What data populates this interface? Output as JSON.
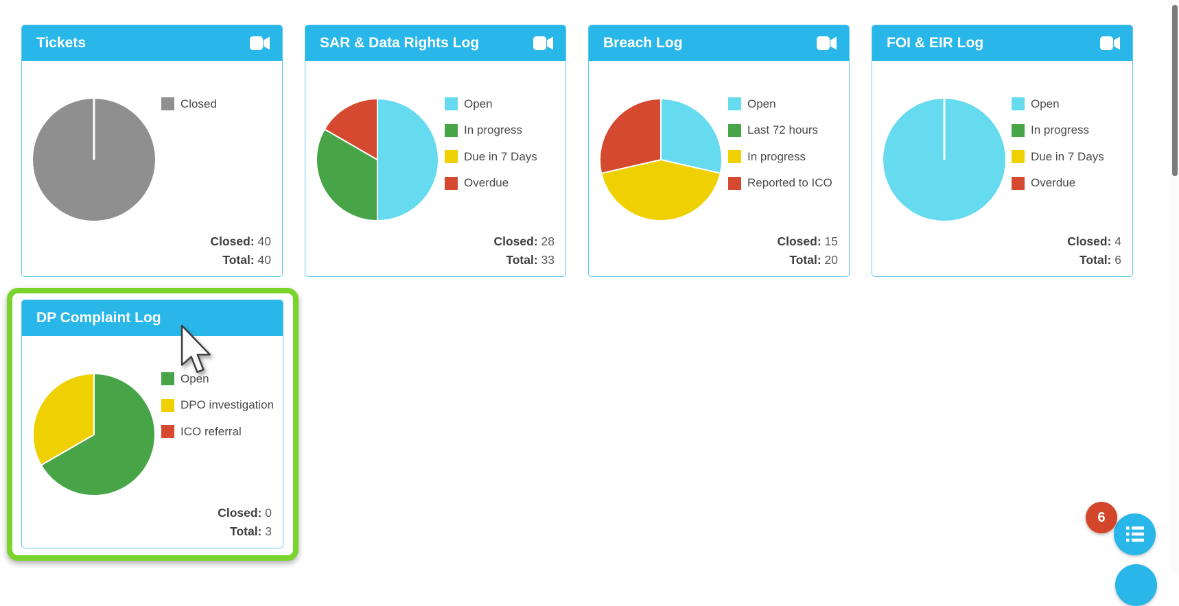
{
  "colors": {
    "header_blue": "#29B6E9",
    "cyan": "#66DBF0",
    "green": "#47A447",
    "yellow": "#EFD002",
    "red": "#D4492F",
    "gray": "#8F8F8F",
    "highlight_green": "#7BD42B",
    "badge_red": "#D3462B",
    "fab_blue": "#29B6E9",
    "card_border": "#5BC8EE",
    "scrollbar_thumb": "#7B7B7B"
  },
  "cards": [
    {
      "title": "Tickets",
      "camera_icon": true,
      "highlighted": false,
      "slices": [
        {
          "label": "Closed",
          "color": "gray",
          "value": 40
        }
      ],
      "summary": {
        "closed_label": "Closed:",
        "closed_value": "40",
        "total_label": "Total:",
        "total_value": "40"
      }
    },
    {
      "title": "SAR & Data Rights Log",
      "camera_icon": true,
      "highlighted": false,
      "slices": [
        {
          "label": "Open",
          "color": "cyan",
          "value": 3
        },
        {
          "label": "In progress",
          "color": "green",
          "value": 2
        },
        {
          "label": "Due in 7 Days",
          "color": "yellow",
          "value": 0
        },
        {
          "label": "Overdue",
          "color": "red",
          "value": 1
        }
      ],
      "summary": {
        "closed_label": "Closed:",
        "closed_value": "28",
        "total_label": "Total:",
        "total_value": "33"
      }
    },
    {
      "title": "Breach Log",
      "camera_icon": true,
      "highlighted": false,
      "slices": [
        {
          "label": "Open",
          "color": "cyan",
          "value": 2
        },
        {
          "label": "Last 72 hours",
          "color": "green",
          "value": 0
        },
        {
          "label": "In progress",
          "color": "yellow",
          "value": 3
        },
        {
          "label": "Reported to ICO",
          "color": "red",
          "value": 2
        }
      ],
      "summary": {
        "closed_label": "Closed:",
        "closed_value": "15",
        "total_label": "Total:",
        "total_value": "20"
      }
    },
    {
      "title": "FOI & EIR Log",
      "camera_icon": true,
      "highlighted": false,
      "slices": [
        {
          "label": "Open",
          "color": "cyan",
          "value": 2
        },
        {
          "label": "In progress",
          "color": "green",
          "value": 0
        },
        {
          "label": "Due in 7 Days",
          "color": "yellow",
          "value": 0
        },
        {
          "label": "Overdue",
          "color": "red",
          "value": 0
        }
      ],
      "summary": {
        "closed_label": "Closed:",
        "closed_value": "4",
        "total_label": "Total:",
        "total_value": "6"
      }
    },
    {
      "title": "DP Complaint Log",
      "camera_icon": false,
      "highlighted": true,
      "slices": [
        {
          "label": "Open",
          "color": "green",
          "value": 2
        },
        {
          "label": "DPO investigation",
          "color": "yellow",
          "value": 1
        },
        {
          "label": "ICO referral",
          "color": "red",
          "value": 0
        }
      ],
      "summary": {
        "closed_label": "Closed:",
        "closed_value": "0",
        "total_label": "Total:",
        "total_value": "3"
      }
    }
  ],
  "fab": {
    "badge_count": "6",
    "primary_icon": "list-menu-icon"
  },
  "chart_data": [
    {
      "type": "pie",
      "title": "Tickets",
      "labels": [
        "Closed"
      ],
      "values": [
        40
      ],
      "colors": [
        "#8F8F8F"
      ],
      "closed": 40,
      "total": 40,
      "legend_position": "right"
    },
    {
      "type": "pie",
      "title": "SAR & Data Rights Log",
      "labels": [
        "Open",
        "In progress",
        "Due in 7 Days",
        "Overdue"
      ],
      "values": [
        3,
        2,
        0,
        1
      ],
      "colors": [
        "#66DBF0",
        "#47A447",
        "#EFD002",
        "#D4492F"
      ],
      "closed": 28,
      "total": 33,
      "legend_position": "right"
    },
    {
      "type": "pie",
      "title": "Breach Log",
      "labels": [
        "Open",
        "Last 72 hours",
        "In progress",
        "Reported to ICO"
      ],
      "values": [
        2,
        0,
        3,
        2
      ],
      "colors": [
        "#66DBF0",
        "#47A447",
        "#EFD002",
        "#D4492F"
      ],
      "closed": 15,
      "total": 20,
      "legend_position": "right"
    },
    {
      "type": "pie",
      "title": "FOI & EIR Log",
      "labels": [
        "Open",
        "In progress",
        "Due in 7 Days",
        "Overdue"
      ],
      "values": [
        2,
        0,
        0,
        0
      ],
      "colors": [
        "#66DBF0",
        "#47A447",
        "#EFD002",
        "#D4492F"
      ],
      "closed": 4,
      "total": 6,
      "legend_position": "right"
    },
    {
      "type": "pie",
      "title": "DP Complaint Log",
      "labels": [
        "Open",
        "DPO investigation",
        "ICO referral"
      ],
      "values": [
        2,
        1,
        0
      ],
      "colors": [
        "#47A447",
        "#EFD002",
        "#D4492F"
      ],
      "closed": 0,
      "total": 3,
      "legend_position": "right"
    }
  ]
}
